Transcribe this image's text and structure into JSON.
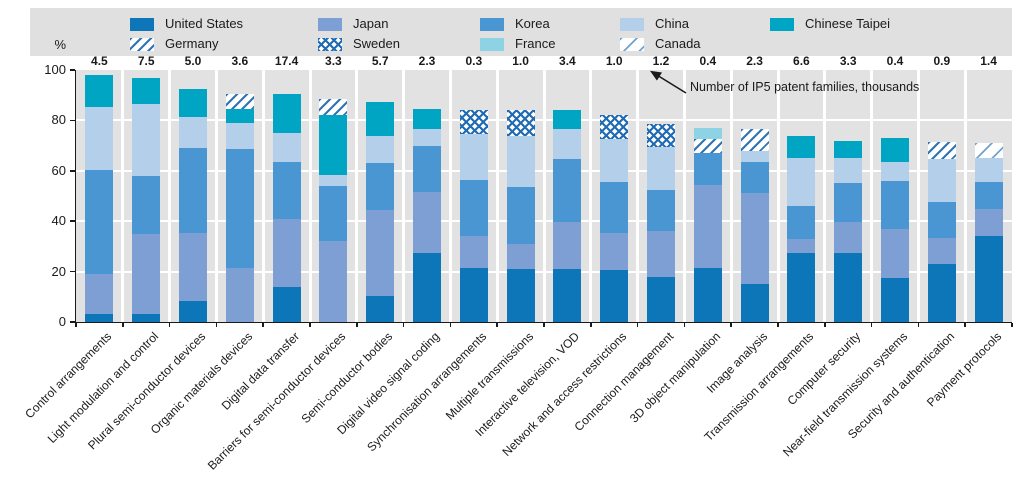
{
  "chart_data": {
    "type": "bar",
    "stacked": true,
    "orientation": "vertical",
    "title": "",
    "ylabel": "%",
    "xlabel": "",
    "ylim": [
      0,
      100
    ],
    "yticks": [
      0,
      20,
      40,
      60,
      80,
      100
    ],
    "grid": true,
    "legend_position": "top",
    "plot_background": "#e2e2e2",
    "annotation": "Number of IP5 patent families, thousands",
    "categories": [
      "Control arrangements",
      "Light modulation and control",
      "Plural semi-conductor devices",
      "Organic materials devices",
      "Digital data transfer",
      "Barriers for semi-conductor devices",
      "Semi-conductor bodies",
      "Digital video signal coding",
      "Synchronisation arrangements",
      "Multiple transmissions",
      "Interactive television, VOD",
      "Network and access restrictions",
      "Connection management",
      "3D object manipulation",
      "Image analysis",
      "Transmission arrangements",
      "Computer security",
      "Near-field transmission systems",
      "Security and authentication",
      "Payment protocols"
    ],
    "bar_total_labels": [
      "4.5",
      "7.5",
      "5.0",
      "3.6",
      "17.4",
      "3.3",
      "5.7",
      "2.3",
      "0.3",
      "1.0",
      "3.4",
      "1.0",
      "1.2",
      "0.4",
      "2.3",
      "6.6",
      "3.3",
      "0.4",
      "0.9",
      "1.4"
    ],
    "series": [
      {
        "name": "United States",
        "color": "#0d76b8",
        "pattern": "solid",
        "values": [
          3,
          3,
          8.5,
          0,
          14,
          0,
          10.5,
          27.5,
          21.5,
          21,
          21,
          20.5,
          18,
          21.5,
          15,
          27.5,
          27.5,
          17.5,
          23,
          34
        ]
      },
      {
        "name": "Japan",
        "color": "#7d9fd3",
        "pattern": "solid",
        "values": [
          16,
          32,
          27,
          21.5,
          27,
          32,
          34,
          24,
          12.5,
          10,
          18.5,
          15,
          18,
          33,
          36,
          5.5,
          12,
          19.5,
          10.5,
          11
        ]
      },
      {
        "name": "Korea",
        "color": "#4a96d2",
        "pattern": "solid",
        "values": [
          41.5,
          23,
          33.5,
          47,
          22.5,
          22,
          18.5,
          18.5,
          22.5,
          22.5,
          25,
          20,
          16.5,
          12.5,
          12.5,
          13,
          15.5,
          19,
          14,
          10.5
        ]
      },
      {
        "name": "China",
        "color": "#b3cfe9",
        "pattern": "solid",
        "values": [
          25,
          28.5,
          12.5,
          10.5,
          11.5,
          4.5,
          11,
          6.5,
          18,
          20.5,
          12,
          17,
          17,
          0,
          4.5,
          19,
          10,
          7.5,
          17,
          9.5
        ]
      },
      {
        "name": "Chinese Taipei",
        "color": "#00a5c3",
        "pattern": "solid",
        "values": [
          12.5,
          10.5,
          11,
          5.5,
          15.5,
          23.5,
          13.5,
          8,
          0,
          0,
          7.5,
          0,
          0,
          0,
          0,
          9,
          7,
          9.5,
          0,
          0
        ]
      },
      {
        "name": "Germany",
        "color": "#2f74b5",
        "pattern": "hatch-dense",
        "values": [
          0,
          0,
          0,
          6,
          0,
          6.5,
          0,
          0,
          0,
          0,
          0,
          0,
          0,
          5.5,
          8.5,
          0,
          0,
          0,
          7,
          0
        ]
      },
      {
        "name": "Sweden",
        "color": "#1f6cb4",
        "pattern": "crosshatch",
        "values": [
          0,
          0,
          0,
          0,
          0,
          0,
          0,
          0,
          9.5,
          10,
          0,
          9.5,
          9,
          0,
          0,
          0,
          0,
          0,
          0,
          0
        ]
      },
      {
        "name": "France",
        "color": "#8ed3e4",
        "pattern": "solid",
        "values": [
          0,
          0,
          0,
          0,
          0,
          0,
          0,
          0,
          0,
          0,
          0,
          0,
          0,
          4.5,
          0,
          0,
          0,
          0,
          0,
          0
        ]
      },
      {
        "name": "Canada",
        "color": "#6fa3d2",
        "pattern": "hatch-sparse",
        "values": [
          0,
          0,
          0,
          0,
          0,
          0,
          0,
          0,
          0,
          0,
          0,
          0,
          0,
          0,
          0,
          0,
          0,
          0,
          0,
          6
        ]
      }
    ]
  }
}
